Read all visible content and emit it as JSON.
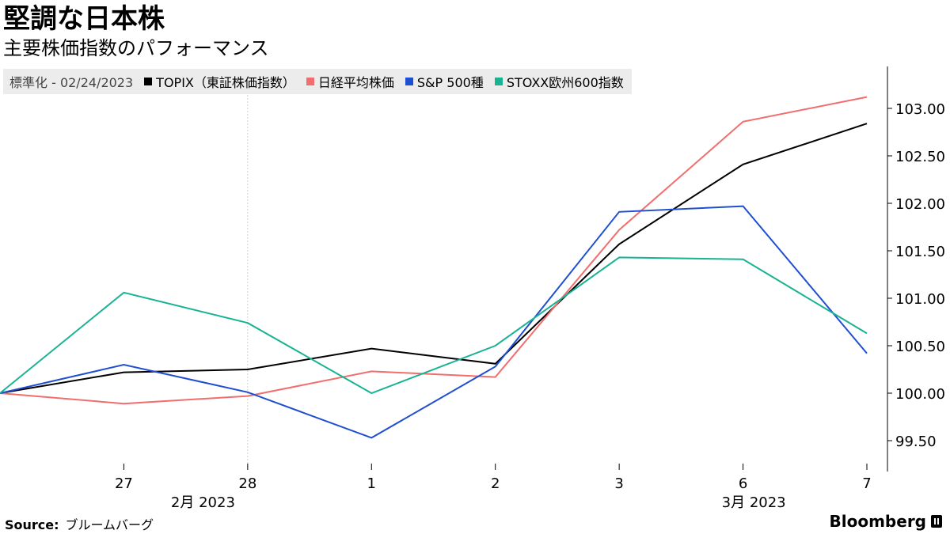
{
  "header": {
    "title": "堅調な日本株",
    "subtitle": "主要株価指数のパフォーマンス"
  },
  "legend": {
    "label": "標準化 - 02/24/2023",
    "items": [
      {
        "label": "TOPIX（東証株価指数）",
        "color": "#000000"
      },
      {
        "label": "日経平均株価",
        "color": "#f26d6d"
      },
      {
        "label": "S&P 500種",
        "color": "#1f4fd1"
      },
      {
        "label": "STOXX欧州600指数",
        "color": "#18b393"
      }
    ]
  },
  "chart_data": {
    "type": "line",
    "x": [
      "24",
      "27",
      "28",
      "1",
      "2",
      "3",
      "6",
      "7"
    ],
    "x_tick_labels": [
      "27",
      "28",
      "1",
      "2",
      "3",
      "6",
      "7"
    ],
    "x_group_labels": [
      "2月 2023",
      "3月 2023"
    ],
    "series": [
      {
        "name": "TOPIX（東証株価指数）",
        "color": "#000000",
        "values": [
          100.0,
          100.22,
          100.25,
          100.47,
          100.31,
          101.57,
          102.41,
          102.84
        ]
      },
      {
        "name": "日経平均株価",
        "color": "#f26d6d",
        "values": [
          100.0,
          99.89,
          99.97,
          100.23,
          100.17,
          101.72,
          102.86,
          103.12
        ]
      },
      {
        "name": "S&P 500種",
        "color": "#1f4fd1",
        "values": [
          100.0,
          100.3,
          100.01,
          99.53,
          100.28,
          101.91,
          101.97,
          100.42
        ]
      },
      {
        "name": "STOXX欧州600指数",
        "color": "#18b393",
        "values": [
          100.0,
          101.06,
          100.74,
          100.0,
          100.5,
          101.43,
          101.41,
          100.63
        ]
      }
    ],
    "y_ticks": [
      "99.50",
      "100.00",
      "100.50",
      "101.00",
      "101.50",
      "102.00",
      "102.50",
      "103.00"
    ],
    "ylim": [
      99.25,
      103.5
    ],
    "grid": "vertical line at month boundary",
    "legend_position": "top-left"
  },
  "footer": {
    "source_label": "Source:",
    "source_text": "ブルームバーグ",
    "brand": "Bloomberg"
  }
}
